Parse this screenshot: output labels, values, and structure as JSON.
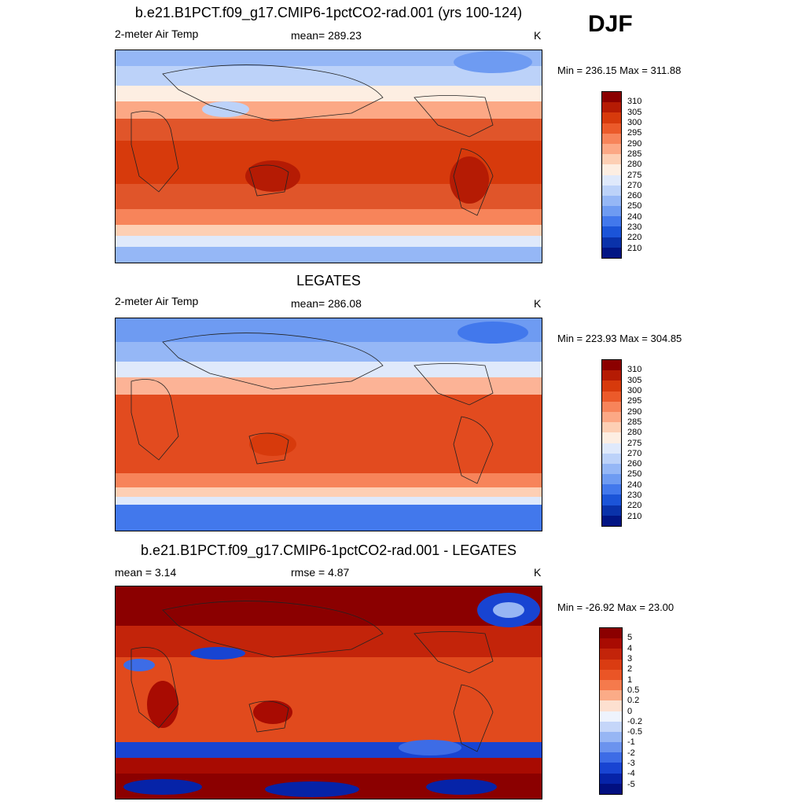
{
  "season": "DJF",
  "panels": [
    {
      "title": "b.e21.B1PCT.f09_g17.CMIP6-1pctCO2-rad.001 (yrs 100-124)",
      "left_label": "2-meter Air Temp",
      "center_label": "mean= 289.23",
      "units": "K",
      "minmax": "Min = 236.15 Max = 311.88",
      "colorbar": {
        "ticks": [
          "310",
          "305",
          "300",
          "295",
          "290",
          "285",
          "280",
          "275",
          "270",
          "260",
          "250",
          "240",
          "230",
          "220",
          "210"
        ],
        "colors": [
          "#8b0000",
          "#b51b04",
          "#d73a0c",
          "#eb5a2a",
          "#f7845a",
          "#fca885",
          "#fdcfb4",
          "#fdeee2",
          "#dfe9fb",
          "#bcd2f9",
          "#95b7f6",
          "#6e9bf2",
          "#4278ec",
          "#1b54d8",
          "#0a32aa",
          "#021584"
        ]
      }
    },
    {
      "title": "LEGATES",
      "left_label": "2-meter Air Temp",
      "center_label": "mean= 286.08",
      "units": "K",
      "minmax": "Min = 223.93 Max = 304.85",
      "colorbar": {
        "ticks": [
          "310",
          "305",
          "300",
          "295",
          "290",
          "285",
          "280",
          "275",
          "270",
          "260",
          "250",
          "240",
          "230",
          "220",
          "210"
        ],
        "colors": [
          "#8b0000",
          "#b51b04",
          "#d73a0c",
          "#eb5a2a",
          "#f7845a",
          "#fca885",
          "#fdcfb4",
          "#fdeee2",
          "#dfe9fb",
          "#bcd2f9",
          "#95b7f6",
          "#6e9bf2",
          "#4278ec",
          "#1b54d8",
          "#0a32aa",
          "#021584"
        ]
      }
    },
    {
      "title": "b.e21.B1PCT.f09_g17.CMIP6-1pctCO2-rad.001 - LEGATES",
      "left_label": "mean =   3.14",
      "center_label": "rmse =   4.87",
      "units": "K",
      "minmax": "Min = -26.92 Max =  23.00",
      "colorbar": {
        "ticks": [
          "5",
          "4",
          "3",
          "2",
          "1",
          "0.5",
          "0.2",
          "0",
          "-0.2",
          "-0.5",
          "-1",
          "-2",
          "-3",
          "-4",
          "-5"
        ],
        "colors": [
          "#8b0000",
          "#a80b02",
          "#c3240a",
          "#da3c12",
          "#ea5526",
          "#f57a4c",
          "#fbab87",
          "#fde0d0",
          "#eef3fd",
          "#c5d6f9",
          "#97b6f4",
          "#6b93ee",
          "#3d6ce6",
          "#1844d2",
          "#0623a8",
          "#010f80"
        ]
      }
    }
  ]
}
